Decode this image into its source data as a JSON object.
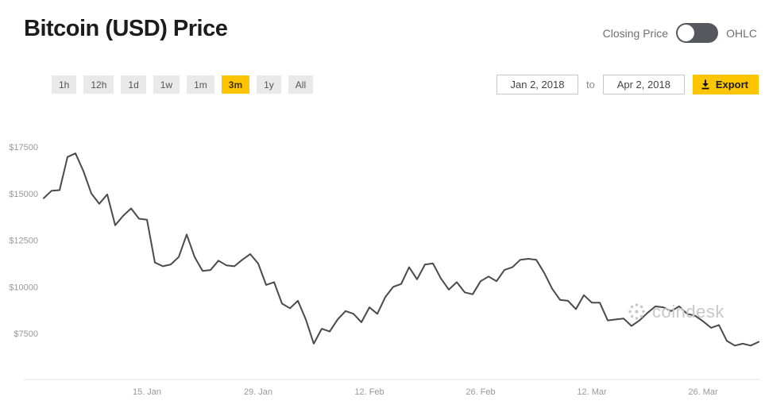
{
  "header": {
    "title": "Bitcoin (USD) Price",
    "toggle": {
      "left_label": "Closing Price",
      "right_label": "OHLC",
      "selected": "Closing Price"
    }
  },
  "toolbar": {
    "range_buttons": [
      {
        "label": "1h",
        "selected": false
      },
      {
        "label": "12h",
        "selected": false
      },
      {
        "label": "1d",
        "selected": false
      },
      {
        "label": "1w",
        "selected": false
      },
      {
        "label": "1m",
        "selected": false
      },
      {
        "label": "3m",
        "selected": true
      },
      {
        "label": "1y",
        "selected": false
      },
      {
        "label": "All",
        "selected": false
      }
    ],
    "date_from": "Jan 2, 2018",
    "to_label": "to",
    "date_to": "Apr 2, 2018",
    "export_label": "Export",
    "export_icon": "download-arrow"
  },
  "watermark": {
    "text": "coindesk",
    "icon": "coindesk-dots-logo"
  },
  "colors": {
    "accent_yellow": "#fdc500",
    "line": "#4a4a4a",
    "axis_text": "#999999",
    "axis_line": "#e3e3e3",
    "button_bg": "#e9e9e9",
    "toggle_bg": "#55585c"
  },
  "chart_data": {
    "type": "line",
    "title": "Bitcoin (USD) Price",
    "series_name": "Closing Price (USD)",
    "x_start": "Jan 2, 2018",
    "x_end": "Apr 2, 2018",
    "x_unit": "day",
    "grid": false,
    "legend": false,
    "ylim": [
      6500,
      17900
    ],
    "y_ticks": [
      {
        "label": "$17500",
        "value": 17500
      },
      {
        "label": "$15000",
        "value": 15000
      },
      {
        "label": "$12500",
        "value": 12500
      },
      {
        "label": "$10000",
        "value": 10000
      },
      {
        "label": "$7500",
        "value": 7500
      }
    ],
    "x_ticks": [
      {
        "label": "15. Jan",
        "day": 13
      },
      {
        "label": "29. Jan",
        "day": 27
      },
      {
        "label": "12. Feb",
        "day": 41
      },
      {
        "label": "26. Feb",
        "day": 55
      },
      {
        "label": "12. Mar",
        "day": 69
      },
      {
        "label": "26. Mar",
        "day": 83
      }
    ],
    "values": [
      14750,
      15150,
      15180,
      16960,
      17150,
      16200,
      15000,
      14450,
      14950,
      13300,
      13800,
      14200,
      13650,
      13600,
      11300,
      11100,
      11200,
      11600,
      12800,
      11600,
      10850,
      10900,
      11400,
      11150,
      11100,
      11450,
      11750,
      11250,
      10100,
      10250,
      9100,
      8850,
      9250,
      8250,
      6950,
      7750,
      7600,
      8250,
      8700,
      8550,
      8100,
      8900,
      8550,
      9450,
      10000,
      10150,
      11050,
      10400,
      11200,
      11250,
      10450,
      9850,
      10250,
      9700,
      9600,
      10300,
      10550,
      10300,
      10900,
      11050,
      11450,
      11500,
      11450,
      10750,
      9900,
      9300,
      9250,
      8800,
      9550,
      9150,
      9150,
      8200,
      8250,
      8300,
      7900,
      8200,
      8600,
      8950,
      8900,
      8700,
      8950,
      8550,
      8450,
      8150,
      7800,
      7950,
      7100,
      6850,
      6950,
      6850,
      7050
    ]
  }
}
